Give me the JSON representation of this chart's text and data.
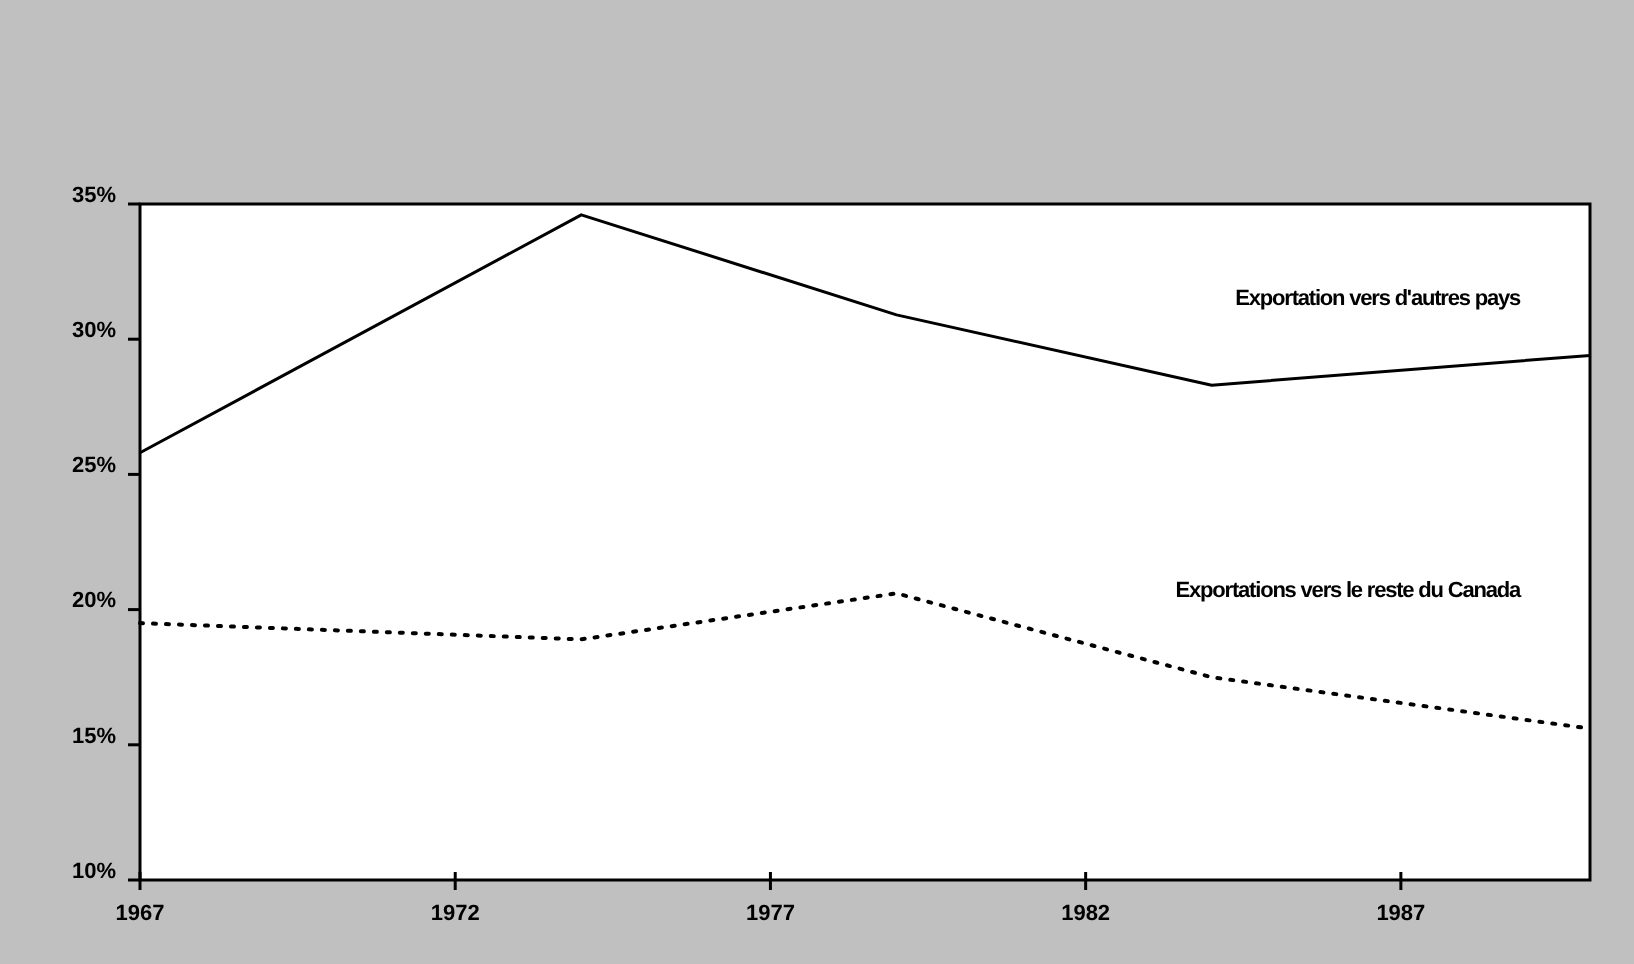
{
  "chart_data": {
    "type": "line",
    "x": [
      1967,
      1974,
      1979,
      1984,
      1990
    ],
    "series": [
      {
        "name": "Exportation vers d'autres pays",
        "color": "#000000",
        "line_style": "solid",
        "values": [
          25.8,
          34.6,
          30.9,
          28.3,
          29.4
        ]
      },
      {
        "name": "Exportations vers le reste du Canada",
        "color": "#000000",
        "line_style": "dotted",
        "values": [
          19.5,
          18.9,
          20.6,
          17.5,
          15.6
        ]
      }
    ],
    "xlim": [
      1967,
      1990
    ],
    "xticks": [
      1967,
      1972,
      1977,
      1982,
      1987
    ],
    "ylim": [
      10,
      35
    ],
    "yticks": [
      {
        "value": 10,
        "label": "10%"
      },
      {
        "value": 15,
        "label": "15%"
      },
      {
        "value": 20,
        "label": "20%"
      },
      {
        "value": 25,
        "label": "25%"
      },
      {
        "value": 30,
        "label": "30%"
      },
      {
        "value": 35,
        "label": "35%"
      }
    ],
    "grid": false,
    "legend": false,
    "marker": "none"
  }
}
